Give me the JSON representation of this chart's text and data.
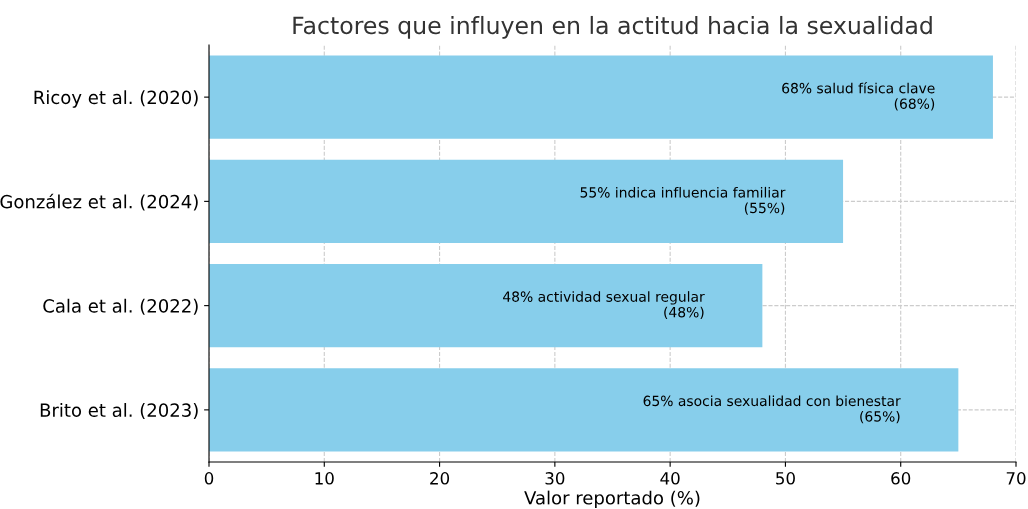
{
  "chart_data": {
    "type": "bar",
    "orientation": "horizontal",
    "title": "Factores que influyen en la actitud hacia la sexualidad",
    "xlabel": "Valor reportado (%)",
    "categories": [
      "Ricoy et al. (2020)",
      "González et al. (2024)",
      "Cala et al. (2022)",
      "Brito et al. (2023)"
    ],
    "values": [
      68,
      55,
      48,
      65
    ],
    "color": "#87ceeb",
    "value_labels": [
      "68% salud física clave\n(68%)",
      "55% indica influencia familiar\n(55%)",
      "48% actividad sexual regular\n(48%)",
      "65% asocia sexualidad con bienestar\n(65%)"
    ],
    "xlim": [
      0,
      70
    ],
    "xticks": [
      0,
      10,
      20,
      30,
      40,
      50,
      60,
      70
    ],
    "grid": true
  }
}
